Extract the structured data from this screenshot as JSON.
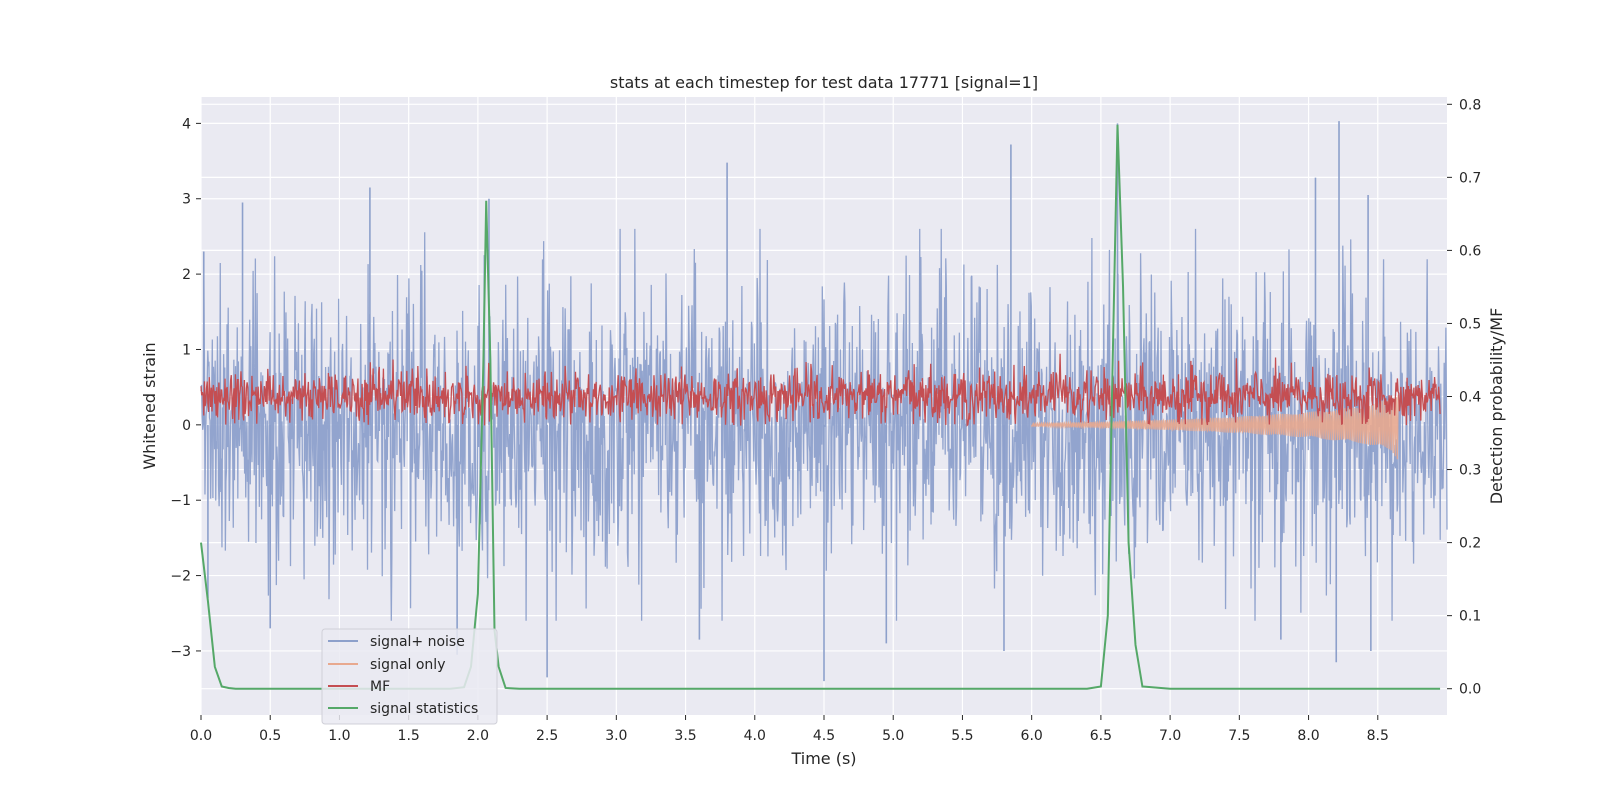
{
  "chart_data": {
    "type": "line",
    "title": "stats at each timestep for test data 17771 [signal=1]",
    "xlabel": "Time (s)",
    "ylabel": "Whitened strain",
    "y2label": "Detection probability/MF",
    "xlim": [
      0.0,
      9.0
    ],
    "ylim": [
      -3.85,
      4.35
    ],
    "y2lim": [
      -0.036,
      0.81
    ],
    "xticks": [
      "0.0",
      "0.5",
      "1.0",
      "1.5",
      "2.0",
      "2.5",
      "3.0",
      "3.5",
      "4.0",
      "4.5",
      "5.0",
      "5.5",
      "6.0",
      "6.5",
      "7.0",
      "7.5",
      "8.0",
      "8.5"
    ],
    "yticks": [
      "4",
      "3",
      "2",
      "1",
      "0",
      "−1",
      "−2",
      "−3"
    ],
    "y2ticks": [
      "0.8",
      "0.7",
      "0.6",
      "0.5",
      "0.4",
      "0.3",
      "0.2",
      "0.1",
      "0.0"
    ],
    "grid": true,
    "legend_position": "lower-left",
    "series": [
      {
        "name": "signal+ noise",
        "axis": "left",
        "color": "#8da0cb",
        "description": "dense whitened noise, roughly within -2 to +2.5 with spikes",
        "peaks": [
          [
            0.02,
            2.3
          ],
          [
            0.3,
            2.95
          ],
          [
            1.22,
            3.15
          ],
          [
            2.08,
            3.0
          ],
          [
            3.8,
            3.48
          ],
          [
            5.85,
            3.72
          ],
          [
            6.62,
            4.0
          ],
          [
            8.05,
            3.28
          ],
          [
            8.22,
            4.03
          ],
          [
            8.43,
            3.05
          ]
        ],
        "troughs": [
          [
            0.05,
            -2.3
          ],
          [
            0.5,
            -2.7
          ],
          [
            1.85,
            -3.05
          ],
          [
            2.5,
            -3.35
          ],
          [
            3.6,
            -2.85
          ],
          [
            4.5,
            -3.4
          ],
          [
            4.95,
            -2.9
          ],
          [
            5.8,
            -3.0
          ],
          [
            7.8,
            -2.85
          ],
          [
            8.2,
            -3.15
          ],
          [
            8.45,
            -3.0
          ]
        ]
      },
      {
        "name": "signal only",
        "axis": "left",
        "color": "#e8a98f",
        "description": "chirp with growing amplitude ending near 8.65 s",
        "envelope": [
          [
            6.0,
            0.02
          ],
          [
            6.5,
            0.04
          ],
          [
            7.0,
            0.07
          ],
          [
            7.5,
            0.11
          ],
          [
            8.0,
            0.17
          ],
          [
            8.4,
            0.25
          ],
          [
            8.6,
            0.35
          ],
          [
            8.65,
            0.48
          ]
        ]
      },
      {
        "name": "MF",
        "axis": "right",
        "color": "#c44e52",
        "description": "matched filter output fluctuating around 0.4",
        "mean": 0.4,
        "range": [
          0.36,
          0.46
        ]
      },
      {
        "name": "signal statistics",
        "axis": "right",
        "color": "#55a868",
        "x": [
          0.0,
          0.05,
          0.1,
          0.15,
          0.2,
          0.25,
          0.5,
          1.0,
          1.5,
          1.8,
          1.9,
          1.95,
          2.0,
          2.04,
          2.06,
          2.09,
          2.12,
          2.15,
          2.2,
          2.3,
          3.0,
          4.0,
          5.0,
          6.0,
          6.4,
          6.5,
          6.55,
          6.58,
          6.62,
          6.66,
          6.7,
          6.75,
          6.8,
          7.0,
          8.0,
          8.95
        ],
        "values": [
          0.2,
          0.12,
          0.03,
          0.003,
          0.001,
          0.0,
          0.0,
          0.0,
          0.0,
          0.0,
          0.002,
          0.03,
          0.13,
          0.45,
          0.668,
          0.45,
          0.08,
          0.03,
          0.001,
          0.0,
          0.0,
          0.0,
          0.0,
          0.0,
          0.0,
          0.003,
          0.1,
          0.4,
          0.772,
          0.55,
          0.2,
          0.06,
          0.003,
          0.0,
          0.0,
          0.0
        ]
      }
    ]
  }
}
